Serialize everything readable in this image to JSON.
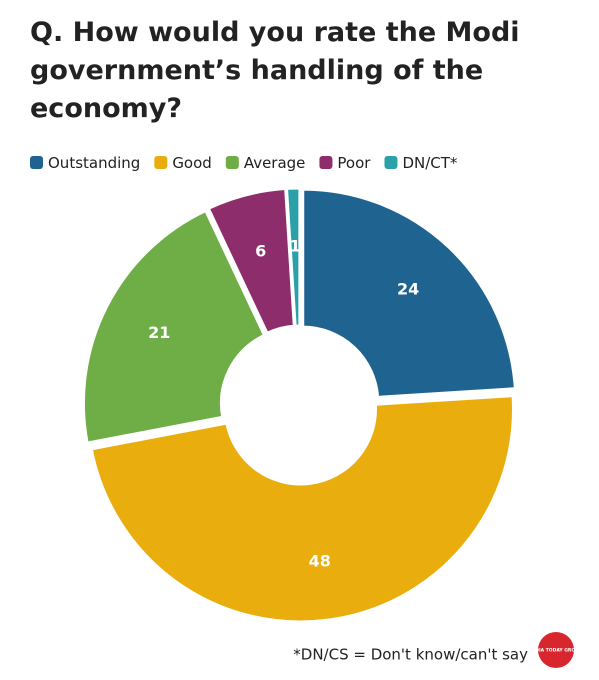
{
  "chart_data": {
    "type": "donut",
    "title": "Q. How would you rate the Modi government’s handling of the economy?",
    "categories": [
      "Outstanding",
      "Good",
      "Average",
      "Poor",
      "DN/CT*"
    ],
    "values": [
      24,
      48,
      21,
      6,
      1
    ],
    "colors": [
      "#1f6391",
      "#e9ae0e",
      "#6fad46",
      "#8e2d6b",
      "#2aa1a8"
    ],
    "legend": "top-left",
    "footnote": "*DN/CS = Don't know/can't say",
    "logo": "INDIA TODAY GROUP"
  }
}
